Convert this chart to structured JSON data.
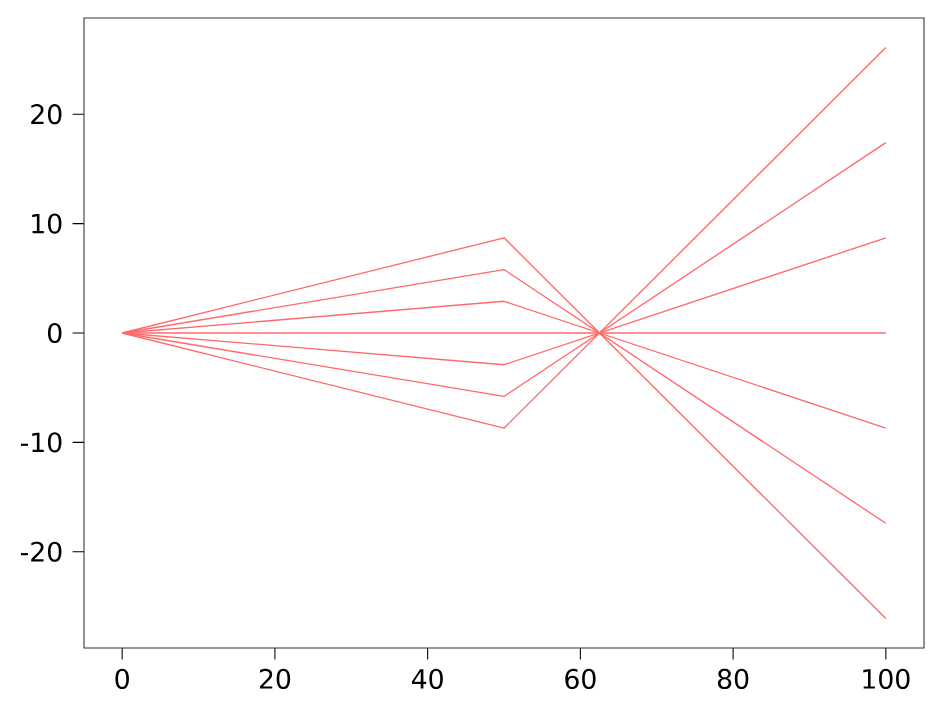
{
  "chart_data": {
    "type": "line",
    "x": [
      0,
      50,
      100
    ],
    "xlim": [
      -5,
      105
    ],
    "ylim": [
      -28.8,
      28.8
    ],
    "xticks": [
      0,
      20,
      40,
      60,
      80,
      100
    ],
    "yticks": [
      -20,
      -10,
      0,
      10,
      20
    ],
    "marker": "none",
    "line_style": "solid",
    "series": [
      {
        "color": "#ff6a6a",
        "values": [
          0,
          8.7,
          -26.1
        ]
      },
      {
        "color": "#ff6a6a",
        "values": [
          0,
          5.8,
          -17.4
        ]
      },
      {
        "color": "#ff6a6a",
        "values": [
          0,
          2.9,
          -8.7
        ]
      },
      {
        "color": "#ff6a6a",
        "values": [
          0,
          0,
          0
        ]
      },
      {
        "color": "#ff6a6a",
        "values": [
          0,
          -2.9,
          8.7
        ]
      },
      {
        "color": "#ff6a6a",
        "values": [
          0,
          -5.8,
          17.4
        ]
      },
      {
        "color": "#ff6a6a",
        "values": [
          0,
          -8.7,
          26.1
        ]
      }
    ]
  }
}
